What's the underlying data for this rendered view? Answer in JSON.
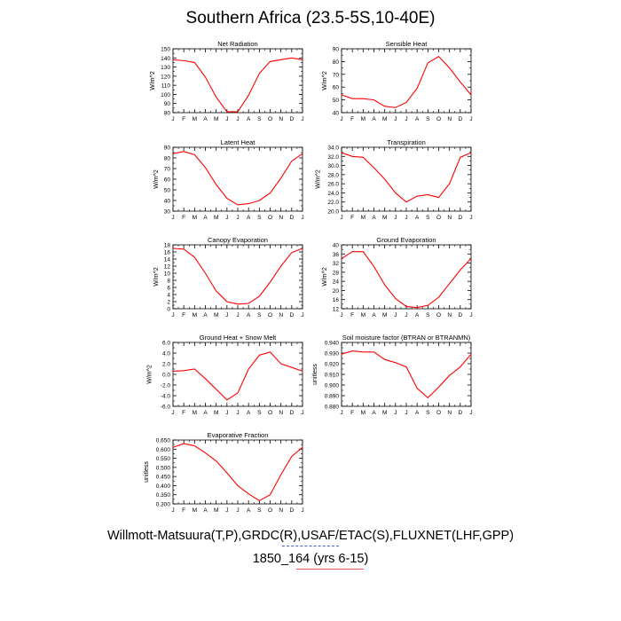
{
  "title": "Southern Africa (23.5-5S,10-40E)",
  "footer": {
    "line1": "Willmott-Matsuura(T,P),GRDC(R),USAF/ETAC(S),FLUXNET(LHF,GPP)",
    "line2": "1850_164 (yrs 6-15)"
  },
  "colors": {
    "series": "#ff0000",
    "axis": "#000000"
  },
  "chart_data": [
    {
      "type": "line",
      "title": "Net Radiation",
      "ylabel": "W/m^2",
      "x": [
        "J",
        "F",
        "M",
        "A",
        "M",
        "J",
        "J",
        "A",
        "S",
        "O",
        "N",
        "D",
        "J"
      ],
      "ylim": [
        80,
        150
      ],
      "yticks": [
        "80",
        "90",
        "100",
        "110",
        "120",
        "130",
        "140",
        "150"
      ],
      "values": [
        138,
        137,
        135,
        119,
        97,
        81,
        81,
        99,
        123,
        136,
        138,
        140,
        138
      ]
    },
    {
      "type": "line",
      "title": "Sensible Heat",
      "ylabel": "W/m^2",
      "x": [
        "J",
        "F",
        "M",
        "A",
        "M",
        "J",
        "J",
        "A",
        "S",
        "O",
        "N",
        "D",
        "J"
      ],
      "ylim": [
        40,
        90
      ],
      "yticks": [
        "40",
        "50",
        "60",
        "70",
        "80",
        "90"
      ],
      "values": [
        54,
        51,
        51,
        50,
        45,
        44,
        48,
        59,
        79,
        84,
        75,
        64,
        54
      ]
    },
    {
      "type": "line",
      "title": "Latent Heat",
      "ylabel": "W/m^2",
      "x": [
        "J",
        "F",
        "M",
        "A",
        "M",
        "J",
        "J",
        "A",
        "S",
        "O",
        "N",
        "D",
        "J"
      ],
      "ylim": [
        30,
        90
      ],
      "yticks": [
        "30",
        "40",
        "50",
        "60",
        "70",
        "80",
        "90"
      ],
      "values": [
        84,
        86,
        83,
        71,
        55,
        42,
        36,
        37,
        40,
        47,
        61,
        77,
        84
      ]
    },
    {
      "type": "line",
      "title": "Transpiration",
      "ylabel": "W/m^2",
      "x": [
        "J",
        "F",
        "M",
        "A",
        "M",
        "J",
        "J",
        "A",
        "S",
        "O",
        "N",
        "D",
        "J"
      ],
      "ylim": [
        20,
        34
      ],
      "yticks": [
        "20.0",
        "22.0",
        "24.0",
        "26.0",
        "28.0",
        "30.0",
        "32.0",
        "34.0"
      ],
      "values": [
        32.8,
        32.0,
        31.8,
        29.5,
        27.0,
        24.0,
        22.0,
        23.3,
        23.6,
        23.0,
        26.0,
        31.8,
        32.8
      ]
    },
    {
      "type": "line",
      "title": "Canopy Evaporation",
      "ylabel": "W/m^2",
      "x": [
        "J",
        "F",
        "M",
        "A",
        "M",
        "J",
        "J",
        "A",
        "S",
        "O",
        "N",
        "D",
        "J"
      ],
      "ylim": [
        0,
        18
      ],
      "yticks": [
        "0",
        "2",
        "4",
        "6",
        "8",
        "10",
        "12",
        "14",
        "16",
        "18"
      ],
      "values": [
        17.0,
        16.8,
        14.5,
        10.0,
        5.0,
        2.0,
        1.3,
        1.5,
        3.5,
        7.5,
        12.0,
        15.8,
        17.0
      ]
    },
    {
      "type": "line",
      "title": "Ground Evaporation",
      "ylabel": "W/m^2",
      "x": [
        "J",
        "F",
        "M",
        "A",
        "M",
        "J",
        "J",
        "A",
        "S",
        "O",
        "N",
        "D",
        "J"
      ],
      "ylim": [
        12,
        40
      ],
      "yticks": [
        "12",
        "16",
        "20",
        "24",
        "28",
        "32",
        "36",
        "40"
      ],
      "values": [
        34,
        37,
        37,
        30.5,
        22.5,
        16.5,
        13,
        12.5,
        13.5,
        17.0,
        23.0,
        29.0,
        34.0
      ]
    },
    {
      "type": "line",
      "title": "Ground Heat + Snow Melt",
      "ylabel": "W/m^2",
      "x": [
        "J",
        "F",
        "M",
        "A",
        "M",
        "J",
        "J",
        "A",
        "S",
        "O",
        "N",
        "D",
        "J"
      ],
      "ylim": [
        -6,
        6
      ],
      "yticks": [
        "-6.0",
        "-4.0",
        "-2.0",
        "0.0",
        "2.0",
        "4.0",
        "6.0"
      ],
      "values": [
        0.6,
        0.7,
        1.0,
        -0.8,
        -2.8,
        -4.8,
        -3.5,
        1.0,
        3.6,
        4.2,
        2.0,
        1.3,
        0.6
      ]
    },
    {
      "type": "line",
      "title": "Soil moisture factor (BTRAN or BTRANMN)",
      "ylabel": "unitless",
      "x": [
        "J",
        "F",
        "M",
        "A",
        "M",
        "J",
        "J",
        "A",
        "S",
        "O",
        "N",
        "D",
        "J"
      ],
      "ylim": [
        0.88,
        0.94
      ],
      "yticks": [
        "0.880",
        "0.890",
        "0.900",
        "0.910",
        "0.920",
        "0.930",
        "0.940"
      ],
      "values": [
        0.929,
        0.932,
        0.931,
        0.931,
        0.924,
        0.921,
        0.917,
        0.897,
        0.888,
        0.898,
        0.909,
        0.917,
        0.929
      ]
    },
    {
      "type": "line",
      "title": "Evaporative Fraction",
      "ylabel": "unitless",
      "x": [
        "J",
        "F",
        "M",
        "A",
        "M",
        "J",
        "J",
        "A",
        "S",
        "O",
        "N",
        "D",
        "J"
      ],
      "ylim": [
        0.3,
        0.65
      ],
      "yticks": [
        "0.300",
        "0.350",
        "0.400",
        "0.450",
        "0.500",
        "0.550",
        "0.600",
        "0.650"
      ],
      "values": [
        0.61,
        0.63,
        0.618,
        0.58,
        0.535,
        0.47,
        0.4,
        0.355,
        0.318,
        0.35,
        0.46,
        0.56,
        0.61
      ]
    }
  ]
}
